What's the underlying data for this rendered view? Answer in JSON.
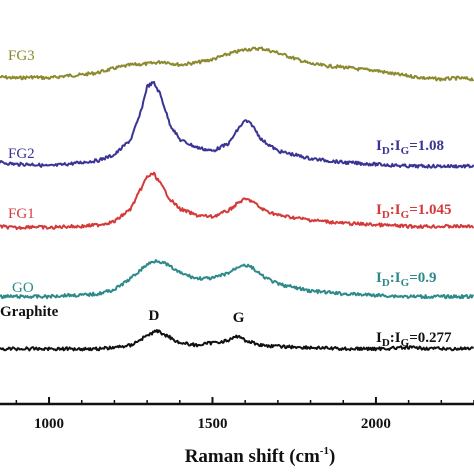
{
  "chart_data": {
    "type": "line",
    "xlabel": "Raman shift (cm",
    "xlabel_sup": "-1",
    "xlabel_close": ")",
    "xlim": [
      850,
      2300
    ],
    "x_ticks": [
      1000,
      1500,
      2000
    ],
    "x_tick_labels": [
      "1000",
      "1500",
      "2000"
    ],
    "y_ticks_shown": false,
    "y_unit": "arbitrary, curves vertically offset",
    "peak_labels": [
      {
        "text": "D",
        "x": 1330
      },
      {
        "text": "G",
        "x": 1580
      }
    ],
    "series": [
      {
        "name": "FG3",
        "color": "#8c8a2e",
        "points": [
          [
            850,
            0.5
          ],
          [
            900,
            0.45
          ],
          [
            950,
            0.5
          ],
          [
            1000,
            0.45
          ],
          [
            1050,
            0.55
          ],
          [
            1100,
            0.6
          ],
          [
            1150,
            0.7
          ],
          [
            1200,
            0.9
          ],
          [
            1250,
            1.05
          ],
          [
            1300,
            1.1
          ],
          [
            1350,
            1.2
          ],
          [
            1400,
            1.05
          ],
          [
            1450,
            1.15
          ],
          [
            1500,
            1.3
          ],
          [
            1550,
            1.55
          ],
          [
            1600,
            1.75
          ],
          [
            1650,
            1.8
          ],
          [
            1700,
            1.6
          ],
          [
            1750,
            1.35
          ],
          [
            1800,
            1.1
          ],
          [
            1850,
            1.0
          ],
          [
            1900,
            0.95
          ],
          [
            1950,
            0.85
          ],
          [
            2000,
            0.8
          ],
          [
            2050,
            0.65
          ],
          [
            2100,
            0.55
          ],
          [
            2150,
            0.45
          ],
          [
            2200,
            0.4
          ],
          [
            2250,
            0.45
          ],
          [
            2300,
            0.4
          ]
        ]
      },
      {
        "name": "FG2",
        "color": "#3a3494",
        "ratio_prefix": "I",
        "ratio_sub1": "D",
        "ratio_mid": ":I",
        "ratio_sub2": "G",
        "ratio_value": "=1.08",
        "points": [
          [
            850,
            0.2
          ],
          [
            900,
            0.15
          ],
          [
            950,
            0.15
          ],
          [
            1000,
            0.1
          ],
          [
            1050,
            0.15
          ],
          [
            1100,
            0.2
          ],
          [
            1150,
            0.25
          ],
          [
            1200,
            0.4
          ],
          [
            1250,
            0.8
          ],
          [
            1280,
            1.5
          ],
          [
            1300,
            2.2
          ],
          [
            1320,
            2.3
          ],
          [
            1340,
            2.0
          ],
          [
            1370,
            1.2
          ],
          [
            1400,
            0.8
          ],
          [
            1450,
            0.6
          ],
          [
            1500,
            0.5
          ],
          [
            1550,
            0.7
          ],
          [
            1580,
            1.1
          ],
          [
            1600,
            1.3
          ],
          [
            1620,
            1.2
          ],
          [
            1650,
            0.8
          ],
          [
            1700,
            0.5
          ],
          [
            1800,
            0.3
          ],
          [
            1900,
            0.2
          ],
          [
            2000,
            0.15
          ],
          [
            2100,
            0.1
          ],
          [
            2200,
            0.1
          ],
          [
            2300,
            0.1
          ]
        ]
      },
      {
        "name": "FG1",
        "color": "#d43a3a",
        "ratio_prefix": "I",
        "ratio_sub1": "D",
        "ratio_mid": ":I",
        "ratio_sub2": "G",
        "ratio_value": "=1.045",
        "points": [
          [
            850,
            0.05
          ],
          [
            900,
            0.0
          ],
          [
            950,
            0.05
          ],
          [
            1000,
            0.0
          ],
          [
            1050,
            0.05
          ],
          [
            1100,
            0.05
          ],
          [
            1150,
            0.1
          ],
          [
            1200,
            0.2
          ],
          [
            1250,
            0.6
          ],
          [
            1280,
            1.2
          ],
          [
            1300,
            1.6
          ],
          [
            1320,
            1.7
          ],
          [
            1340,
            1.4
          ],
          [
            1370,
            0.9
          ],
          [
            1400,
            0.6
          ],
          [
            1450,
            0.4
          ],
          [
            1500,
            0.35
          ],
          [
            1550,
            0.55
          ],
          [
            1580,
            0.8
          ],
          [
            1600,
            0.9
          ],
          [
            1620,
            0.85
          ],
          [
            1650,
            0.6
          ],
          [
            1700,
            0.4
          ],
          [
            1800,
            0.25
          ],
          [
            1900,
            0.15
          ],
          [
            2000,
            0.1
          ],
          [
            2100,
            0.05
          ],
          [
            2200,
            0.05
          ],
          [
            2300,
            0.05
          ]
        ]
      },
      {
        "name": "GO",
        "color": "#2e8a8a",
        "ratio_prefix": "I",
        "ratio_sub1": "D",
        "ratio_mid": ":I",
        "ratio_sub2": "G",
        "ratio_value": "=0.9",
        "points": [
          [
            850,
            0.05
          ],
          [
            900,
            0.05
          ],
          [
            950,
            0.05
          ],
          [
            1000,
            0.05
          ],
          [
            1050,
            0.1
          ],
          [
            1100,
            0.1
          ],
          [
            1150,
            0.15
          ],
          [
            1200,
            0.3
          ],
          [
            1250,
            0.7
          ],
          [
            1300,
            1.2
          ],
          [
            1330,
            1.35
          ],
          [
            1360,
            1.2
          ],
          [
            1400,
            0.9
          ],
          [
            1450,
            0.7
          ],
          [
            1500,
            0.7
          ],
          [
            1550,
            0.9
          ],
          [
            1590,
            1.2
          ],
          [
            1620,
            1.1
          ],
          [
            1650,
            0.8
          ],
          [
            1700,
            0.5
          ],
          [
            1800,
            0.25
          ],
          [
            1900,
            0.15
          ],
          [
            2000,
            0.1
          ],
          [
            2100,
            0.05
          ],
          [
            2200,
            0.05
          ],
          [
            2300,
            0.05
          ]
        ]
      },
      {
        "name": "Graphite",
        "color": "#111111",
        "ratio_prefix": "I",
        "ratio_sub1": "D",
        "ratio_mid": ":I",
        "ratio_sub2": "G",
        "ratio_value": "=0.277",
        "points": [
          [
            850,
            0.05
          ],
          [
            900,
            0.05
          ],
          [
            950,
            0.05
          ],
          [
            1000,
            0.05
          ],
          [
            1050,
            0.05
          ],
          [
            1100,
            0.05
          ],
          [
            1150,
            0.05
          ],
          [
            1200,
            0.1
          ],
          [
            1250,
            0.2
          ],
          [
            1300,
            0.6
          ],
          [
            1330,
            0.8
          ],
          [
            1360,
            0.6
          ],
          [
            1400,
            0.3
          ],
          [
            1450,
            0.2
          ],
          [
            1500,
            0.3
          ],
          [
            1550,
            0.4
          ],
          [
            1580,
            0.6
          ],
          [
            1600,
            0.4
          ],
          [
            1650,
            0.2
          ],
          [
            1700,
            0.15
          ],
          [
            1800,
            0.1
          ],
          [
            1900,
            0.05
          ],
          [
            2000,
            0.05
          ],
          [
            2100,
            0.1
          ],
          [
            2200,
            0.05
          ],
          [
            2300,
            0.05
          ]
        ]
      }
    ]
  }
}
